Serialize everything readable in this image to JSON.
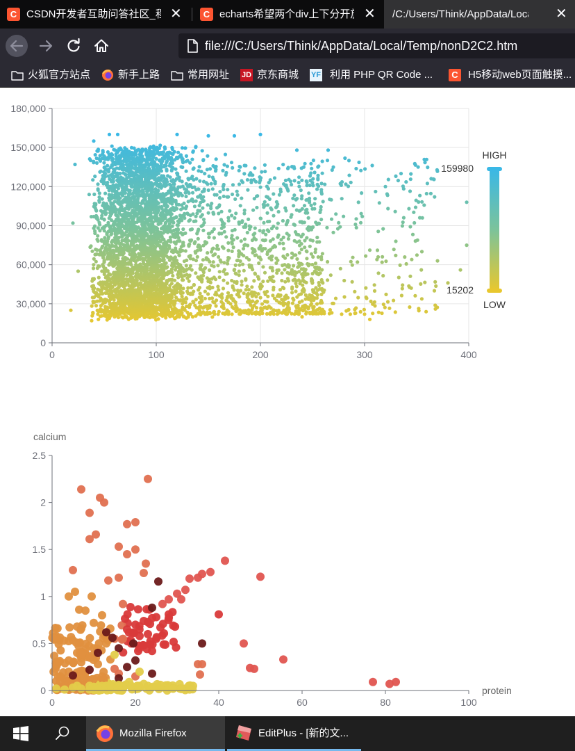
{
  "browser": {
    "tabs": [
      {
        "title": "CSDN开发者互助问答社区_程",
        "favicon": "C"
      },
      {
        "title": "echarts希望两个div上下分开放",
        "favicon": "C"
      },
      {
        "title": "/C:/Users/Think/AppData/Local/"
      }
    ],
    "url": "file:///C:/Users/Think/AppData/Local/Temp/nonD2C2.htm",
    "bookmarks": [
      {
        "label": "火狐官方站点",
        "icon": "folder-icon"
      },
      {
        "label": "新手上路",
        "icon": "firefox-icon"
      },
      {
        "label": "常用网址",
        "icon": "folder-icon"
      },
      {
        "label": "京东商城",
        "icon": "jd-icon",
        "badge": "JD"
      },
      {
        "label": "利用 PHP QR Code ...",
        "icon": "yf-icon",
        "badge": "YF"
      },
      {
        "label": "H5移动web页面触摸...",
        "icon": "csdn-icon",
        "badge": "C"
      }
    ]
  },
  "chart_data": [
    {
      "type": "scatter",
      "x_ticks": [
        "0",
        "100",
        "200",
        "300",
        "400"
      ],
      "y_ticks": [
        "0",
        "30,000",
        "60,000",
        "90,000",
        "120,000",
        "150,000",
        "180,000"
      ],
      "xlim": [
        0,
        400
      ],
      "ylim": [
        0,
        180000
      ],
      "grid": true,
      "visual_map": {
        "max": 159980,
        "min": 15202,
        "max_label": "159980",
        "min_label": "15202",
        "high_text": "HIGH",
        "low_text": "LOW",
        "colors": [
          "#3ab8e6",
          "#7cc39a",
          "#e8c72e"
        ]
      },
      "description": "Dense cloud of several thousand points; most x between 30 and 150, y between 18,000 and 160,000; sparse tail to x=400",
      "sample_points": [
        [
          40,
          155000
        ],
        [
          55,
          160000
        ],
        [
          63,
          160000
        ],
        [
          120,
          160000
        ],
        [
          150,
          159000
        ],
        [
          175,
          159000
        ],
        [
          200,
          160000
        ],
        [
          265,
          148000
        ],
        [
          235,
          148000
        ],
        [
          270,
          135000
        ],
        [
          285,
          140000
        ],
        [
          335,
          130000
        ],
        [
          320,
          120000
        ],
        [
          330,
          128000
        ],
        [
          398,
          108000
        ],
        [
          398,
          75000
        ],
        [
          330,
          78000
        ],
        [
          355,
          70000
        ],
        [
          370,
          63000
        ],
        [
          392,
          56000
        ],
        [
          380,
          46000
        ],
        [
          367,
          40000
        ],
        [
          368,
          26000
        ],
        [
          300,
          22000
        ],
        [
          305,
          18000
        ],
        [
          278,
          22000
        ],
        [
          18,
          25000
        ],
        [
          25,
          55000
        ],
        [
          38,
          17000
        ],
        [
          60,
          20000
        ],
        [
          80,
          20000
        ],
        [
          135,
          20000
        ],
        [
          240,
          20000
        ],
        [
          20,
          92000
        ],
        [
          22,
          137000
        ]
      ]
    },
    {
      "type": "scatter",
      "xlabel": "protein",
      "ylabel": "calcium",
      "x_ticks": [
        "0",
        "20",
        "40",
        "60",
        "80",
        "100"
      ],
      "y_ticks": [
        "0",
        "0.5",
        "1",
        "1.5",
        "2",
        "2.5"
      ],
      "xlim": [
        0,
        100
      ],
      "ylim": [
        0,
        2.5
      ],
      "grid": false,
      "series_colors": [
        "#e07050",
        "#e0903f",
        "#d93a3a",
        "#6b1a1a",
        "#e3cc4a",
        "#e05550"
      ],
      "points": [
        [
          7,
          2.14
        ],
        [
          11.5,
          2.05
        ],
        [
          12.5,
          2.0
        ],
        [
          23,
          2.25
        ],
        [
          9,
          1.89
        ],
        [
          18,
          1.77
        ],
        [
          20,
          1.79
        ],
        [
          10.5,
          1.66
        ],
        [
          9,
          1.61
        ],
        [
          16,
          1.53
        ],
        [
          20,
          1.5
        ],
        [
          18,
          1.45
        ],
        [
          22.5,
          1.35
        ],
        [
          5,
          1.28
        ],
        [
          22,
          1.25
        ],
        [
          13.5,
          1.17
        ],
        [
          16,
          1.2
        ],
        [
          4,
          1.0
        ],
        [
          5.5,
          1.05
        ],
        [
          9.5,
          1.0
        ],
        [
          6.5,
          0.86
        ],
        [
          8,
          0.85
        ],
        [
          12,
          0.8
        ],
        [
          10,
          0.72
        ],
        [
          17,
          0.92
        ],
        [
          6,
          0.68
        ],
        [
          7,
          0.66
        ],
        [
          13,
          0.6
        ],
        [
          15,
          0.55
        ],
        [
          10,
          0.45
        ],
        [
          13,
          0.5
        ],
        [
          9,
          0.35
        ],
        [
          6,
          0.4
        ],
        [
          14,
          0.33
        ],
        [
          4,
          0.32
        ],
        [
          7,
          0.3
        ],
        [
          11,
          0.28
        ],
        [
          15,
          0.23
        ],
        [
          4,
          0.2
        ],
        [
          2,
          0.15
        ],
        [
          1,
          0.1
        ],
        [
          3,
          0.05
        ],
        [
          5,
          0.02
        ],
        [
          8,
          0.08
        ],
        [
          10,
          0.12
        ],
        [
          13,
          0.05
        ],
        [
          16,
          0.18
        ],
        [
          2,
          0.04
        ],
        [
          6,
          0.12
        ],
        [
          41.5,
          1.38
        ],
        [
          50,
          1.21
        ],
        [
          38,
          1.26
        ],
        [
          36,
          1.24
        ],
        [
          35,
          1.2
        ],
        [
          33,
          1.19
        ],
        [
          32,
          1.07
        ],
        [
          30,
          1.03
        ],
        [
          31,
          0.97
        ],
        [
          28,
          0.97
        ],
        [
          26.5,
          0.92
        ],
        [
          40,
          0.81
        ],
        [
          28,
          0.81
        ],
        [
          25,
          0.78
        ],
        [
          24,
          0.77
        ],
        [
          22,
          0.74
        ],
        [
          26,
          0.67
        ],
        [
          20,
          0.7
        ],
        [
          18,
          0.65
        ],
        [
          23,
          0.6
        ],
        [
          21,
          0.58
        ],
        [
          17,
          0.55
        ],
        [
          19,
          0.5
        ],
        [
          22,
          0.48
        ],
        [
          25,
          0.55
        ],
        [
          24,
          0.42
        ],
        [
          46,
          0.5
        ],
        [
          55.5,
          0.33
        ],
        [
          47.5,
          0.24
        ],
        [
          48.5,
          0.23
        ],
        [
          35,
          0.28
        ],
        [
          36,
          0.28
        ],
        [
          35.5,
          0.17
        ],
        [
          77,
          0.09
        ],
        [
          81,
          0.07
        ],
        [
          82.5,
          0.09
        ],
        [
          20,
          0.15
        ],
        [
          12,
          0.15
        ],
        [
          16,
          0.13
        ],
        [
          24,
          0.18
        ],
        [
          5,
          0.16
        ],
        [
          9,
          0.22
        ],
        [
          25.5,
          1.16
        ],
        [
          24,
          0.88
        ],
        [
          13,
          0.62
        ],
        [
          14.5,
          0.56
        ],
        [
          19.5,
          0.5
        ],
        [
          36,
          0.5
        ],
        [
          16,
          0.45
        ],
        [
          11,
          0.4
        ],
        [
          20,
          0.32
        ],
        [
          18,
          0.25
        ],
        [
          21,
          0.2
        ],
        [
          15,
          0.38
        ],
        [
          9,
          0.05
        ],
        [
          12,
          0.03
        ],
        [
          1,
          0.02
        ],
        [
          3,
          0.01
        ],
        [
          5,
          0.03
        ],
        [
          7,
          0.02
        ],
        [
          9,
          0.01
        ],
        [
          11,
          0.02
        ],
        [
          13,
          0.03
        ],
        [
          15,
          0.02
        ],
        [
          17,
          0.04
        ],
        [
          18.5,
          0.09
        ],
        [
          19,
          0.05
        ],
        [
          21,
          0.03
        ],
        [
          23,
          0.05
        ],
        [
          25,
          0.04
        ],
        [
          27,
          0.03
        ],
        [
          29,
          0.02
        ],
        [
          31,
          0.02
        ],
        [
          33,
          0.01
        ],
        [
          14,
          0.05
        ],
        [
          10,
          0.04
        ],
        [
          6,
          0.05
        ],
        [
          26,
          0.06
        ],
        [
          22,
          0.07
        ],
        [
          16,
          0.06
        ]
      ]
    }
  ],
  "taskbar": {
    "items": [
      {
        "label": "Mozilla Firefox"
      },
      {
        "label": "EditPlus - [新的文..."
      }
    ]
  }
}
